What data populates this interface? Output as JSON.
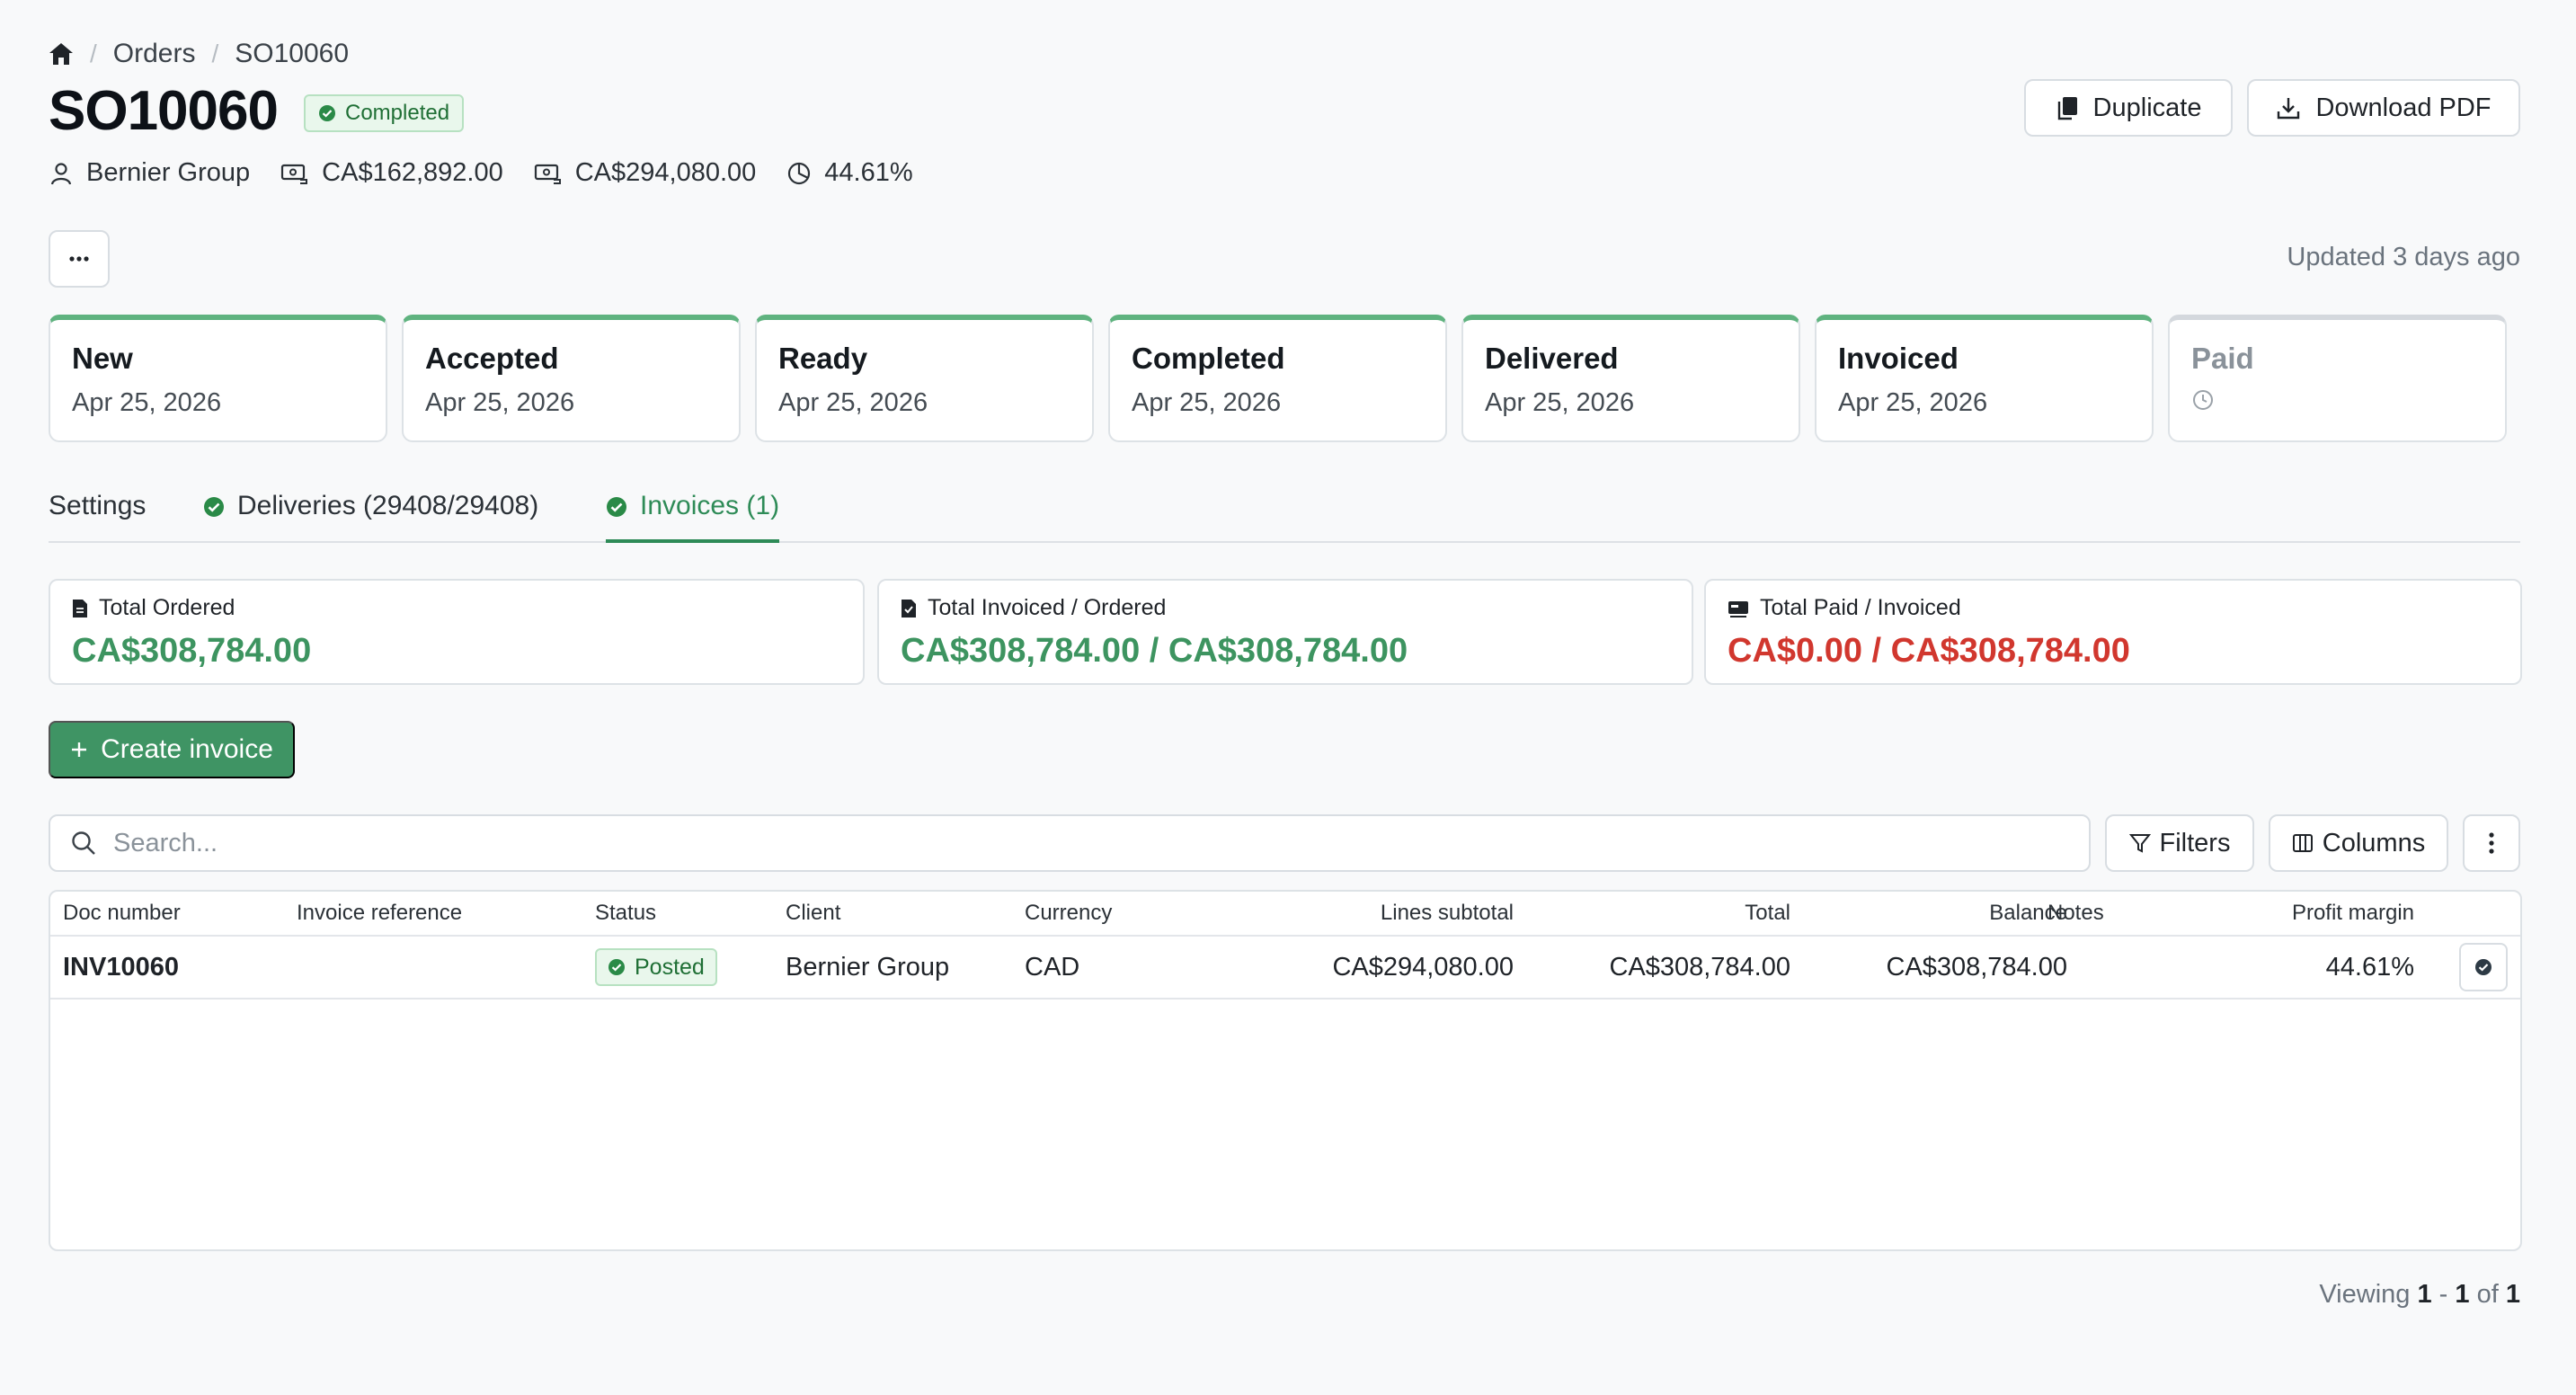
{
  "breadcrumb": {
    "home_icon": "home-icon",
    "items": [
      "Orders",
      "SO10060"
    ]
  },
  "order": {
    "number": "SO10060",
    "status": "Completed",
    "client": "Bernier Group",
    "cost": "CA$162,892.00",
    "subtotal": "CA$294,080.00",
    "margin": "44.61%"
  },
  "actions": {
    "duplicate": "Duplicate",
    "download_pdf": "Download PDF",
    "more": "···"
  },
  "updated": "Updated 3 days ago",
  "steps": [
    {
      "title": "New",
      "date": "Apr 25, 2026",
      "done": true
    },
    {
      "title": "Accepted",
      "date": "Apr 25, 2026",
      "done": true
    },
    {
      "title": "Ready",
      "date": "Apr 25, 2026",
      "done": true
    },
    {
      "title": "Completed",
      "date": "Apr 25, 2026",
      "done": true
    },
    {
      "title": "Delivered",
      "date": "Apr 25, 2026",
      "done": true
    },
    {
      "title": "Invoiced",
      "date": "Apr 25, 2026",
      "done": true
    },
    {
      "title": "Paid",
      "date": "",
      "done": false
    }
  ],
  "tabs": [
    {
      "label": "Settings",
      "active": false
    },
    {
      "label": "Deliveries (29408/29408)",
      "active": false
    },
    {
      "label": "Invoices (1)",
      "active": true
    }
  ],
  "summary": {
    "ordered": {
      "label": "Total Ordered",
      "value": "CA$308,784.00"
    },
    "invoiced": {
      "label": "Total Invoiced / Ordered",
      "value": "CA$308,784.00 / CA$308,784.00"
    },
    "paid": {
      "label": "Total Paid / Invoiced",
      "value": "CA$0.00 / CA$308,784.00"
    }
  },
  "create_invoice": "Create invoice",
  "search": {
    "placeholder": "Search..."
  },
  "toolbar": {
    "filters": "Filters",
    "columns": "Columns"
  },
  "table": {
    "headers": {
      "doc_number": "Doc number",
      "invoice_reference": "Invoice reference",
      "status": "Status",
      "client": "Client",
      "currency": "Currency",
      "lines_subtotal": "Lines subtotal",
      "total": "Total",
      "balance": "Balance",
      "notes": "Notes",
      "profit_margin": "Profit margin"
    },
    "rows": [
      {
        "doc_number": "INV10060",
        "invoice_reference": "",
        "status": "Posted",
        "client": "Bernier Group",
        "currency": "CAD",
        "lines_subtotal": "CA$294,080.00",
        "total": "CA$308,784.00",
        "balance": "CA$308,784.00",
        "notes": "",
        "profit_margin": "44.61%"
      }
    ]
  },
  "pagination": {
    "prefix": "Viewing",
    "start": "1",
    "sep": "-",
    "end": "1",
    "of": "of",
    "count": "1"
  },
  "colors": {
    "accent": "#3f9464",
    "success": "#2e8b57",
    "danger": "#d1372e"
  }
}
